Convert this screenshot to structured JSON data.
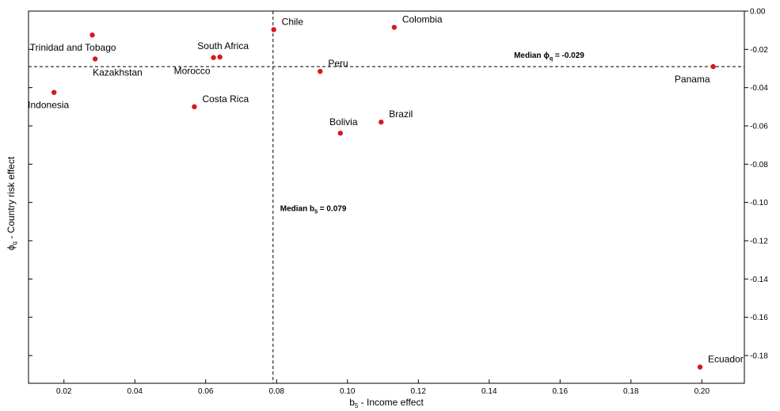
{
  "chart_data": {
    "type": "scatter",
    "xlabel": "b5 - Income effect",
    "xlabel_main": "b",
    "xlabel_sub": "5",
    "xlabel_rest": " - Income effect",
    "ylabel": "ϕq - Country risk effect",
    "ylabel_main": "ϕ",
    "ylabel_sub": "q",
    "ylabel_rest": " - Country risk effect",
    "xlim": [
      0.01,
      0.212
    ],
    "ylim": [
      -0.1945,
      0.0
    ],
    "x_ticks": [
      0.02,
      0.04,
      0.06,
      0.08,
      0.1,
      0.12,
      0.14,
      0.16,
      0.18,
      0.2
    ],
    "x_tick_labels": [
      "0.02",
      "0.04",
      "0.06",
      "0.08",
      "0.10",
      "0.12",
      "0.14",
      "0.16",
      "0.18",
      "0.20"
    ],
    "y_ticks": [
      0.0,
      -0.02,
      -0.04,
      -0.06,
      -0.08,
      -0.1,
      -0.12,
      -0.14,
      -0.16,
      -0.18
    ],
    "y_tick_labels": [
      "0.00",
      "-0.02",
      "-0.04",
      "-0.06",
      "-0.08",
      "-0.10",
      "-0.12",
      "-0.14",
      "-0.16",
      "-0.18"
    ],
    "grid": false,
    "point_color": "#d7191c",
    "points": [
      {
        "label": "Trinidad and Tobago",
        "x": 0.028,
        "y": -0.0125,
        "label_pos": "left-below"
      },
      {
        "label": "Kazakhstan",
        "x": 0.0288,
        "y": -0.025,
        "label_pos": "right-below"
      },
      {
        "label": "Indonesia",
        "x": 0.0172,
        "y": -0.0425,
        "label_pos": "left-below"
      },
      {
        "label": "Morocco",
        "x": 0.0622,
        "y": -0.0243,
        "label_pos": "left-below"
      },
      {
        "label": "South Africa",
        "x": 0.064,
        "y": -0.024,
        "label_pos": "above"
      },
      {
        "label": "Costa Rica",
        "x": 0.0568,
        "y": -0.05,
        "label_pos": "above-right"
      },
      {
        "label": "Chile",
        "x": 0.0792,
        "y": -0.0097,
        "label_pos": "above-right"
      },
      {
        "label": "Peru",
        "x": 0.0923,
        "y": -0.0315,
        "label_pos": "above-right"
      },
      {
        "label": "Colombia",
        "x": 0.1132,
        "y": -0.0085,
        "label_pos": "above-right"
      },
      {
        "label": "Bolivia",
        "x": 0.098,
        "y": -0.0638,
        "label_pos": "above"
      },
      {
        "label": "Brazil",
        "x": 0.1095,
        "y": -0.058,
        "label_pos": "above-right"
      },
      {
        "label": "Panama",
        "x": 0.2032,
        "y": -0.029,
        "label_pos": "left-below"
      },
      {
        "label": "Ecuador",
        "x": 0.1995,
        "y": -0.186,
        "label_pos": "above-right"
      }
    ],
    "reference_lines": [
      {
        "orientation": "vertical",
        "value": 0.079,
        "style": "dashed"
      },
      {
        "orientation": "horizontal",
        "value": -0.029,
        "style": "dashed"
      }
    ],
    "annotations": {
      "median_x": {
        "prefix": "Median b",
        "sub": "5",
        "suffix": " = 0.079",
        "x": 0.081,
        "y": -0.1045
      },
      "median_y": {
        "prefix": "Median ϕ",
        "sub": "q",
        "suffix": " = -0.029",
        "x": 0.147,
        "y": -0.0245
      }
    }
  }
}
